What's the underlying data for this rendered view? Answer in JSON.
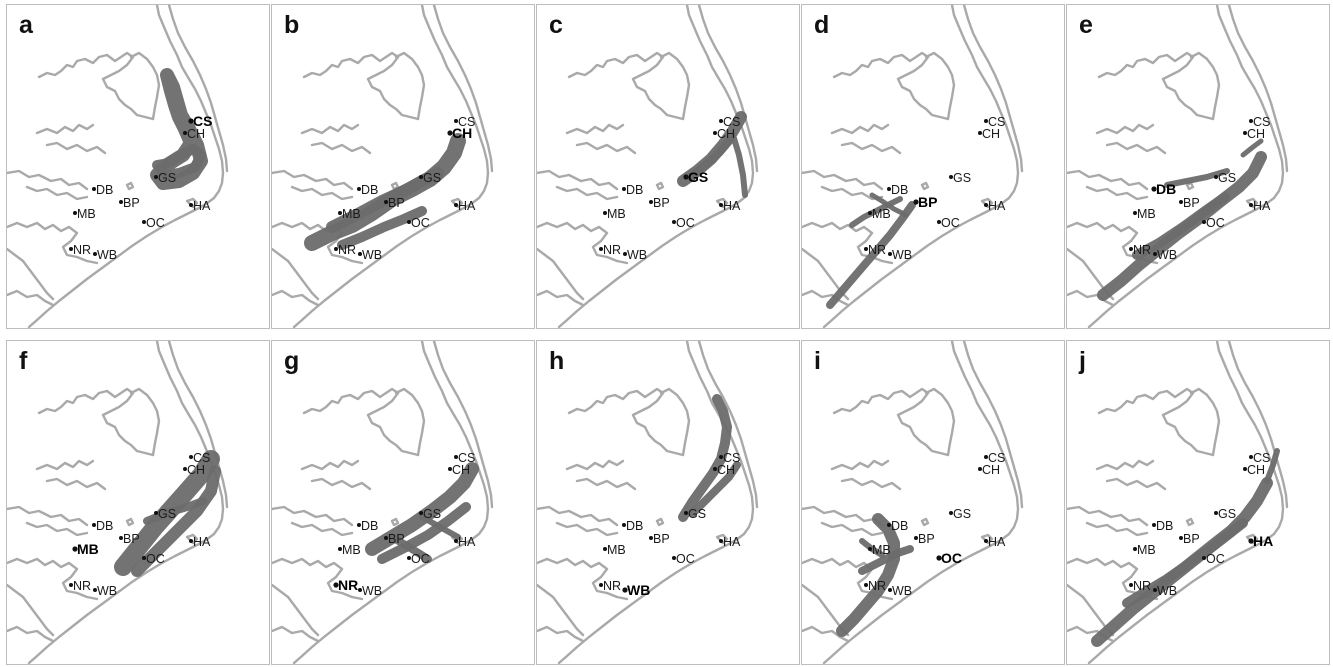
{
  "figure": {
    "panels": [
      {
        "letter": "a",
        "highlight": [
          "CS"
        ]
      },
      {
        "letter": "b",
        "highlight": [
          "CH"
        ]
      },
      {
        "letter": "c",
        "highlight": [
          "GS"
        ]
      },
      {
        "letter": "d",
        "highlight": [
          "BP"
        ]
      },
      {
        "letter": "e",
        "highlight": [
          "DB"
        ]
      },
      {
        "letter": "f",
        "highlight": [
          "MB"
        ]
      },
      {
        "letter": "g",
        "highlight": [
          "NR"
        ]
      },
      {
        "letter": "h",
        "highlight": [
          "WB"
        ]
      },
      {
        "letter": "i",
        "highlight": [
          "OC"
        ]
      },
      {
        "letter": "j",
        "highlight": [
          "HA"
        ]
      }
    ],
    "sites": [
      "CS",
      "CH",
      "GS",
      "DB",
      "BP",
      "HA",
      "MB",
      "OC",
      "NR",
      "WB"
    ]
  },
  "colors": {
    "coastline": "#a9a9a9",
    "track": "#6b6b6b",
    "site_marker": "#111111",
    "panel_border": "#bdbdbd"
  }
}
